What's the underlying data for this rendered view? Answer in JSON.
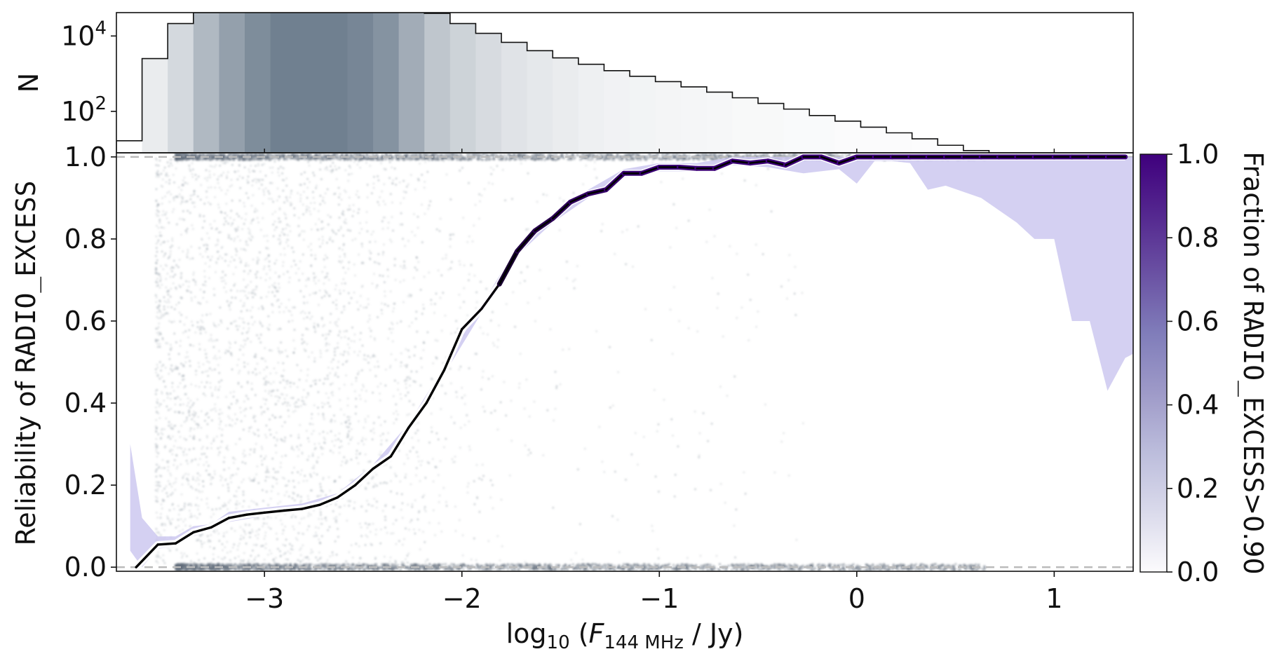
{
  "chart_data": [
    {
      "panel": "top-histogram",
      "type": "bar",
      "scale": "log",
      "ylabel": "N",
      "y_ticks": [
        {
          "base": "10",
          "exp": "2",
          "value": 100
        },
        {
          "base": "10",
          "exp": "4",
          "value": 10000
        }
      ],
      "ylim_log10": [
        0.9,
        4.62
      ],
      "bin_edges": [
        -3.75,
        -3.62,
        -3.49,
        -3.36,
        -3.23,
        -3.1,
        -2.97,
        -2.84,
        -2.71,
        -2.58,
        -2.45,
        -2.32,
        -2.19,
        -2.06,
        -1.93,
        -1.8,
        -1.67,
        -1.54,
        -1.41,
        -1.28,
        -1.15,
        -1.02,
        -0.89,
        -0.76,
        -0.63,
        -0.5,
        -0.37,
        -0.24,
        -0.11,
        0.02,
        0.15,
        0.28,
        0.41,
        0.54,
        0.67,
        0.8,
        0.93,
        1.06,
        1.19,
        1.32,
        1.4
      ],
      "counts_log10": [
        1.22,
        3.4,
        4.33,
        4.62,
        4.86,
        5.07,
        5.22,
        5.24,
        5.27,
        5.26,
        5.16,
        4.86,
        4.6,
        4.33,
        4.07,
        3.83,
        3.61,
        3.42,
        3.25,
        3.08,
        2.93,
        2.79,
        2.65,
        2.51,
        2.36,
        2.21,
        2.06,
        1.89,
        1.74,
        1.58,
        1.43,
        1.27,
        1.1,
        0.96,
        0.78,
        0.61,
        0.46,
        0.2,
        0.0,
        0.0
      ],
      "bar_shade_fraction": [
        0.0,
        0.15,
        0.3,
        0.55,
        0.75,
        0.9,
        1.0,
        1.0,
        1.0,
        0.95,
        0.85,
        0.65,
        0.45,
        0.35,
        0.28,
        0.22,
        0.18,
        0.15,
        0.12,
        0.1,
        0.09,
        0.08,
        0.07,
        0.06,
        0.05,
        0.05,
        0.04,
        0.04,
        0.03,
        0.03,
        0.03,
        0.02,
        0.02,
        0.02,
        0.02,
        0.01,
        0.01,
        0.01,
        0.0,
        0.0
      ]
    },
    {
      "panel": "main",
      "type": "line",
      "xlabel_prefix": "log",
      "xlabel_sub1": "10",
      "xlabel_mid": " (",
      "xlabel_var": "F",
      "xlabel_sub2": "144 MHz",
      "xlabel_suffix": " / Jy)",
      "ylabel_prefix": "Reliability of ",
      "ylabel_code": "RADIO_EXCESS",
      "xlim": [
        -3.75,
        1.4
      ],
      "ylim": [
        -0.01,
        1.01
      ],
      "x_ticks": [
        {
          "label": "−3",
          "value": -3
        },
        {
          "label": "−2",
          "value": -2
        },
        {
          "label": "−1",
          "value": -1
        },
        {
          "label": "0",
          "value": 0
        },
        {
          "label": "1",
          "value": 1
        }
      ],
      "y_ticks": [
        {
          "label": "0.0",
          "value": 0.0
        },
        {
          "label": "0.2",
          "value": 0.2
        },
        {
          "label": "0.4",
          "value": 0.4
        },
        {
          "label": "0.6",
          "value": 0.6
        },
        {
          "label": "0.8",
          "value": 0.8
        },
        {
          "label": "1.0",
          "value": 1.0
        }
      ],
      "reference_lines": [
        0.0,
        1.0
      ],
      "series_x": [
        -3.65,
        -3.54,
        -3.45,
        -3.36,
        -3.27,
        -3.18,
        -3.09,
        -3.0,
        -2.9,
        -2.81,
        -2.72,
        -2.63,
        -2.54,
        -2.45,
        -2.36,
        -2.27,
        -2.18,
        -2.09,
        -2.0,
        -1.9,
        -1.81,
        -1.72,
        -1.63,
        -1.54,
        -1.45,
        -1.36,
        -1.27,
        -1.18,
        -1.09,
        -1.0,
        -0.9,
        -0.81,
        -0.72,
        -0.63,
        -0.54,
        -0.45,
        -0.36,
        -0.27,
        -0.18,
        -0.09,
        0.0,
        0.09,
        0.18,
        0.27,
        0.36,
        0.45,
        0.54,
        0.63,
        0.72,
        0.81,
        0.9,
        1.0,
        1.09,
        1.18,
        1.27,
        1.36
      ],
      "series_y": [
        0.0,
        0.055,
        0.058,
        0.085,
        0.097,
        0.12,
        0.128,
        0.133,
        0.138,
        0.142,
        0.152,
        0.17,
        0.2,
        0.24,
        0.27,
        0.34,
        0.4,
        0.48,
        0.58,
        0.63,
        0.69,
        0.77,
        0.82,
        0.85,
        0.89,
        0.91,
        0.92,
        0.96,
        0.96,
        0.975,
        0.975,
        0.972,
        0.972,
        0.99,
        0.985,
        0.99,
        0.98,
        1.0,
        1.0,
        0.985,
        1.0,
        1.0,
        1.0,
        1.0,
        1.0,
        1.0,
        1.0,
        1.0,
        1.0,
        1.0,
        1.0,
        1.0,
        1.0,
        1.0,
        1.0,
        1.0
      ],
      "band_x": [
        -3.68,
        -3.62,
        -3.54,
        -3.45,
        -3.36,
        -3.27,
        -3.18,
        -3.0,
        -2.81,
        -2.63,
        -2.45,
        -2.27,
        -2.09,
        -1.9,
        -1.72,
        -1.54,
        -1.36,
        -1.18,
        -1.0,
        -0.81,
        -0.63,
        -0.45,
        -0.27,
        -0.09,
        0.0,
        0.09,
        0.18,
        0.27,
        0.36,
        0.45,
        0.63,
        0.81,
        0.9,
        1.0,
        1.09,
        1.18,
        1.27,
        1.36,
        1.4
      ],
      "band_low": [
        0.04,
        0.0,
        0.045,
        0.05,
        0.075,
        0.09,
        0.11,
        0.125,
        0.135,
        0.16,
        0.23,
        0.33,
        0.47,
        0.62,
        0.76,
        0.84,
        0.9,
        0.95,
        0.965,
        0.965,
        0.98,
        0.975,
        0.96,
        0.97,
        0.935,
        0.99,
        0.99,
        0.985,
        0.92,
        0.93,
        0.9,
        0.84,
        0.8,
        0.8,
        0.6,
        0.6,
        0.43,
        0.51,
        0.52
      ],
      "band_high": [
        0.3,
        0.12,
        0.075,
        0.075,
        0.1,
        0.105,
        0.135,
        0.145,
        0.155,
        0.18,
        0.25,
        0.35,
        0.49,
        0.64,
        0.78,
        0.86,
        0.92,
        0.97,
        0.985,
        0.985,
        1.0,
        1.0,
        1.0,
        1.0,
        1.0,
        1.0,
        1.0,
        1.0,
        1.0,
        1.0,
        1.0,
        1.0,
        1.0,
        1.0,
        1.0,
        1.0,
        1.0,
        1.0,
        1.0
      ],
      "line_color_scale": [
        "#ffffff",
        "#3f007d"
      ]
    },
    {
      "panel": "colorbar",
      "label_prefix": "Fraction of ",
      "label_code": "RADIO_EXCESS",
      "label_suffix": ">0.90",
      "ticks": [
        {
          "label": "0.0",
          "value": 0.0
        },
        {
          "label": "0.2",
          "value": 0.2
        },
        {
          "label": "0.4",
          "value": 0.4
        },
        {
          "label": "0.6",
          "value": 0.6
        },
        {
          "label": "0.8",
          "value": 0.8
        },
        {
          "label": "1.0",
          "value": 1.0
        }
      ],
      "range": [
        0.0,
        1.0
      ],
      "colors": [
        "#fcfbfd",
        "#dadaeb",
        "#bcbddc",
        "#9e9ac8",
        "#807dba",
        "#6a51a3",
        "#54278f",
        "#3f007d"
      ]
    }
  ]
}
